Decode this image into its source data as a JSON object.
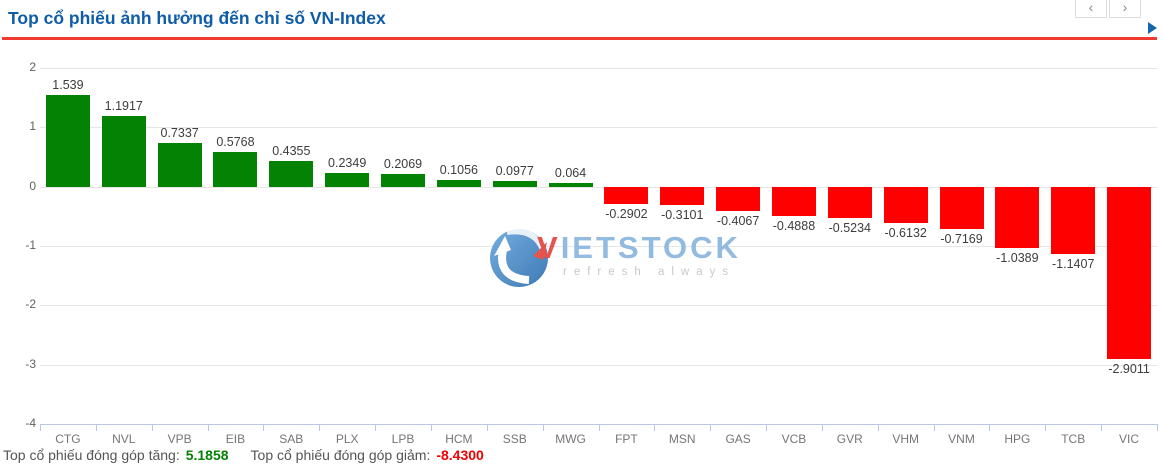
{
  "header": {
    "title": "Top cổ phiếu ảnh hưởng đến chỉ số VN-Index",
    "nav_prev_icon": "‹",
    "nav_next_icon": "›",
    "accent_color": "#f13a30",
    "title_color": "#0f5ca8"
  },
  "chart_data": {
    "type": "bar",
    "title": "Top cổ phiếu ảnh hưởng đến chỉ số VN-Index",
    "categories": [
      "CTG",
      "NVL",
      "VPB",
      "EIB",
      "SAB",
      "PLX",
      "LPB",
      "HCM",
      "SSB",
      "MWG",
      "FPT",
      "MSN",
      "GAS",
      "VCB",
      "GVR",
      "VHM",
      "VNM",
      "HPG",
      "TCB",
      "VIC"
    ],
    "values": [
      1.539,
      1.1917,
      0.7337,
      0.5768,
      0.4355,
      0.2349,
      0.2069,
      0.1056,
      0.0977,
      0.064,
      -0.2902,
      -0.3101,
      -0.4067,
      -0.4888,
      -0.5234,
      -0.6132,
      -0.7169,
      -1.0389,
      -1.1407,
      -2.9011
    ],
    "value_labels": [
      "1.539",
      "1.1917",
      "0.7337",
      "0.5768",
      "0.4355",
      "0.2349",
      "0.2069",
      "0.1056",
      "0.0977",
      "0.064",
      "-0.2902",
      "-0.3101",
      "-0.4067",
      "-0.4888",
      "-0.5234",
      "-0.6132",
      "-0.7169",
      "-1.0389",
      "-1.1407",
      "-2.9011"
    ],
    "yticks": [
      2,
      1,
      0,
      -1,
      -2,
      -3,
      -4
    ],
    "ylim": [
      -4,
      2
    ],
    "xlabel": "",
    "ylabel": "",
    "grid": true,
    "legend": "none",
    "positive_color": "#048204",
    "negative_color": "#ff0000"
  },
  "watermark": {
    "brand_v": "V",
    "brand_rest": "IETSTOCK",
    "tagline": "refresh always"
  },
  "footer": {
    "gain_label": "Top cổ phiếu đóng góp tăng:",
    "gain_value": "5.1858",
    "loss_label": "Top cổ phiếu đóng góp giảm:",
    "loss_value": "-8.4300"
  }
}
